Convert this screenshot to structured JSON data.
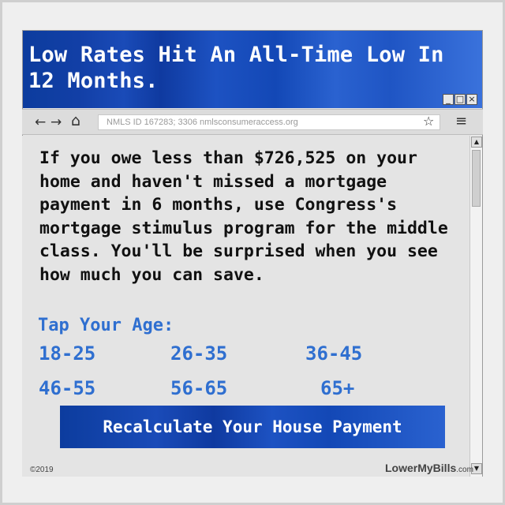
{
  "window": {
    "title": "Low Rates Hit An All-Time Low In 12 Months.",
    "minimize_label": "_",
    "maximize_label": "□",
    "close_label": "×"
  },
  "browser": {
    "back_icon": "←",
    "forward_icon": "→",
    "home_icon": "⌂",
    "url": "NMLS ID 167283; 3306  nmlsconsumeraccess.org",
    "star_icon": "☆",
    "menu_icon": "≡"
  },
  "ad": {
    "body": "If you owe less than $726,525 on your home and haven't missed a mortgage payment in 6 months, use Congress's mortgage stimulus program for the middle class. You'll be surprised when you see how much you can save.",
    "age_prompt": "Tap Your Age:",
    "ages": [
      "18-25",
      "26-35",
      "36-45",
      "46-55",
      "56-65",
      "65+"
    ],
    "cta_label": "Recalculate Your House Payment",
    "copyright": "©2019",
    "brand": "LowerMyBills",
    "brand_suffix": ".com"
  },
  "colors": {
    "accent": "#2f6fd0",
    "title_bg": "#1a4bb8"
  }
}
